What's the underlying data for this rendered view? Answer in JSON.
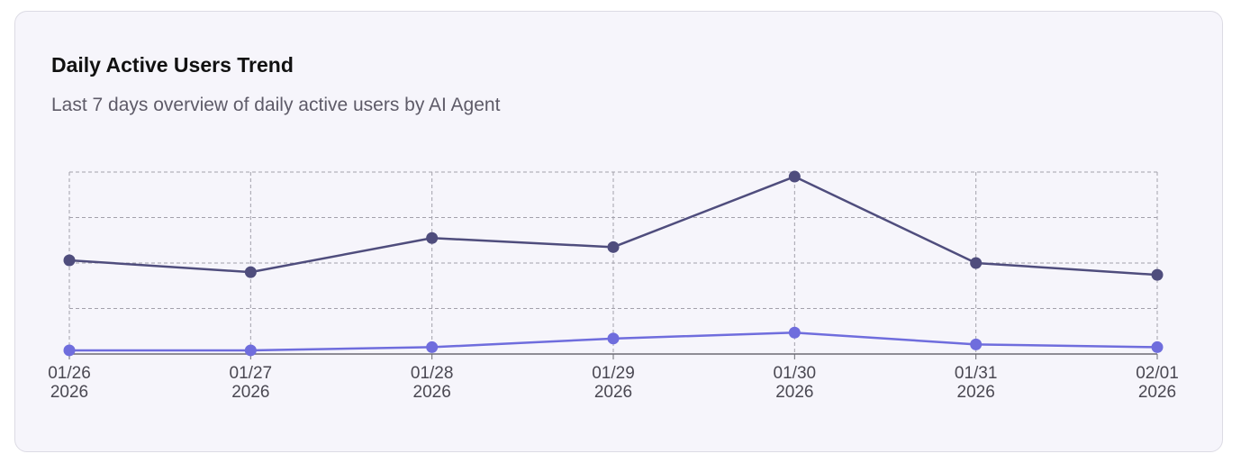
{
  "card": {
    "title": "Daily Active Users Trend",
    "subtitle": "Last 7 days overview of daily active users by AI Agent"
  },
  "colors": {
    "card_background": "#f6f5fb",
    "grid": "#a3a1ab",
    "axis": "#6b6a73",
    "series_dark": "#4f4d7d",
    "series_light": "#6f6ddd",
    "tick_text": "#4a4852"
  },
  "chart_data": {
    "type": "line",
    "x_ticks": [
      {
        "date": "01/26",
        "year": "2026"
      },
      {
        "date": "01/27",
        "year": "2026"
      },
      {
        "date": "01/28",
        "year": "2026"
      },
      {
        "date": "01/29",
        "year": "2026"
      },
      {
        "date": "01/30",
        "year": "2026"
      },
      {
        "date": "01/31",
        "year": "2026"
      },
      {
        "date": "02/01",
        "year": "2026"
      }
    ],
    "ylim": [
      0,
      4
    ],
    "y_gridlines": 4,
    "grid": true,
    "grid_style": "dashed",
    "y_tick_labels_shown": false,
    "legend": "none",
    "series": [
      {
        "values": [
          2.06,
          1.8,
          2.55,
          2.35,
          3.9,
          2.0,
          1.74
        ],
        "color": "#4f4d7d"
      },
      {
        "values": [
          0.08,
          0.08,
          0.15,
          0.34,
          0.47,
          0.21,
          0.15
        ],
        "color": "#6f6ddd"
      }
    ]
  }
}
